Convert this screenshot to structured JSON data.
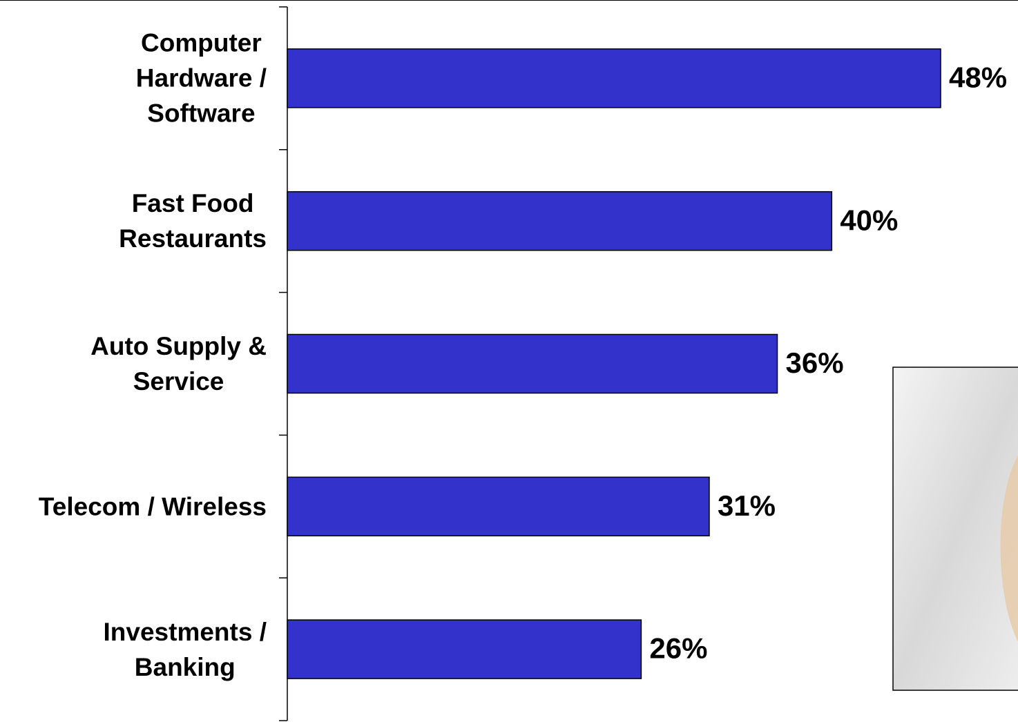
{
  "chart_data": {
    "type": "bar",
    "orientation": "horizontal",
    "categories": [
      "Computer\nHardware /\nSoftware",
      "Fast Food\nRestaurants",
      "Auto Supply &\nService",
      "Telecom / Wireless",
      "Investments /\nBanking"
    ],
    "values": [
      48,
      40,
      36,
      31,
      26
    ],
    "value_labels": [
      "48%",
      "40%",
      "36%",
      "31%",
      "26%"
    ],
    "color": "#3333cc"
  }
}
